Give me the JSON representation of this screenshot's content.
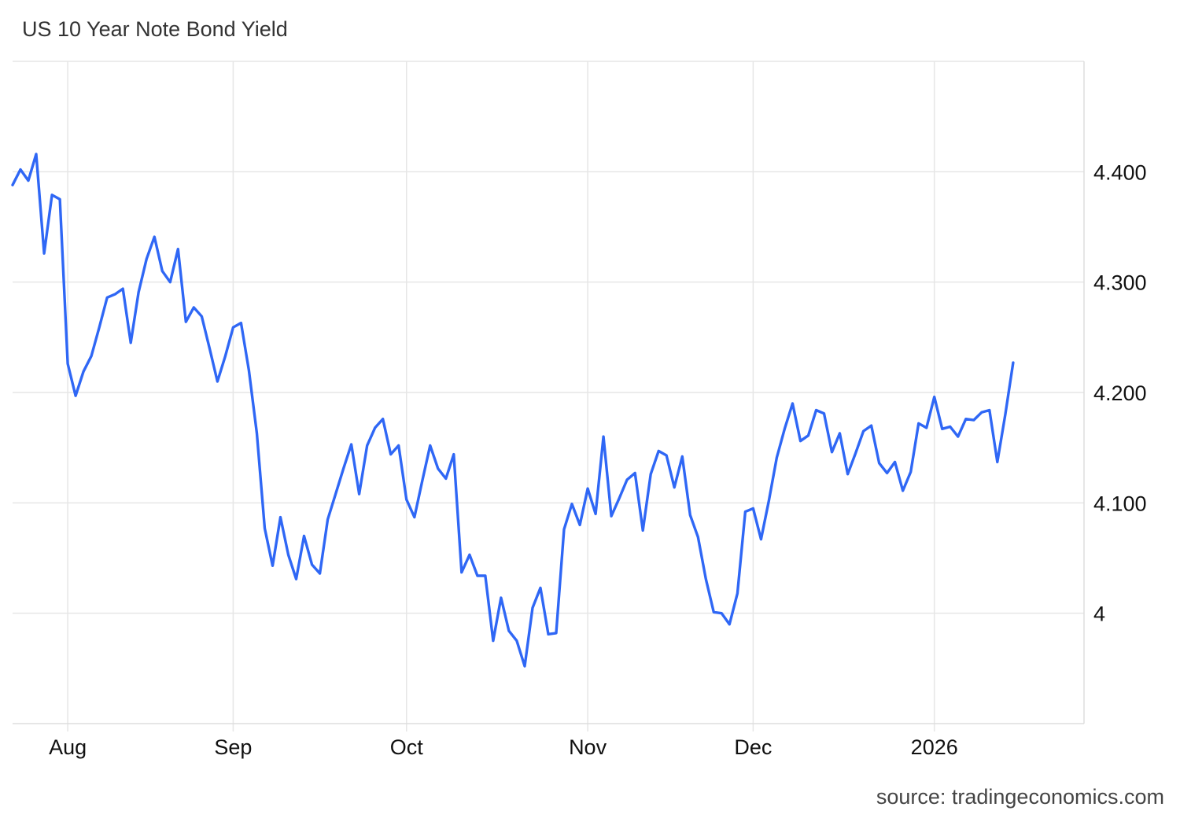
{
  "chart_data": {
    "type": "line",
    "title": "US 10 Year Note Bond Yield",
    "source": "source: tradingeconomics.com",
    "line_color": "#2f67f5",
    "grid_color": "#e6e6e6",
    "grid": true,
    "ylim": [
      3.9,
      4.5
    ],
    "y_ticks": [
      {
        "value": 4.0,
        "label": "4"
      },
      {
        "value": 4.1,
        "label": "4.100"
      },
      {
        "value": 4.2,
        "label": "4.200"
      },
      {
        "value": 4.3,
        "label": "4.300"
      },
      {
        "value": 4.4,
        "label": "4.400"
      }
    ],
    "x_ticks": [
      {
        "value": 7,
        "label": "Aug"
      },
      {
        "value": 28,
        "label": "Sep"
      },
      {
        "value": 50,
        "label": "Oct"
      },
      {
        "value": 73,
        "label": "Nov"
      },
      {
        "value": 94,
        "label": "Dec"
      },
      {
        "value": 117,
        "label": "2026"
      }
    ],
    "x_range": [
      0,
      136
    ],
    "y": [
      4.388,
      4.402,
      4.392,
      4.416,
      4.326,
      4.379,
      4.375,
      4.226,
      4.197,
      4.219,
      4.233,
      4.259,
      4.286,
      4.289,
      4.294,
      4.245,
      4.291,
      4.321,
      4.341,
      4.31,
      4.3,
      4.33,
      4.264,
      4.277,
      4.269,
      4.24,
      4.21,
      4.233,
      4.259,
      4.263,
      4.22,
      4.163,
      4.077,
      4.043,
      4.087,
      4.053,
      4.031,
      4.07,
      4.044,
      4.036,
      4.085,
      4.108,
      4.131,
      4.153,
      4.108,
      4.152,
      4.168,
      4.176,
      4.144,
      4.152,
      4.103,
      4.087,
      4.12,
      4.152,
      4.131,
      4.122,
      4.144,
      4.037,
      4.053,
      4.034,
      4.034,
      3.975,
      4.014,
      3.984,
      3.975,
      3.952,
      4.005,
      4.023,
      3.981,
      3.982,
      4.076,
      4.099,
      4.08,
      4.113,
      4.09,
      4.16,
      4.088,
      4.104,
      4.121,
      4.127,
      4.075,
      4.126,
      4.147,
      4.143,
      4.114,
      4.142,
      4.089,
      4.069,
      4.031,
      4.001,
      4.0,
      3.99,
      4.018,
      4.092,
      4.095,
      4.067,
      4.102,
      4.141,
      4.167,
      4.19,
      4.156,
      4.161,
      4.184,
      4.181,
      4.146,
      4.163,
      4.126,
      4.145,
      4.165,
      4.17,
      4.136,
      4.127,
      4.137,
      4.111,
      4.128,
      4.172,
      4.168,
      4.196,
      4.167,
      4.169,
      4.16,
      4.176,
      4.175,
      4.182,
      4.184,
      4.137,
      4.18,
      4.227
    ]
  }
}
